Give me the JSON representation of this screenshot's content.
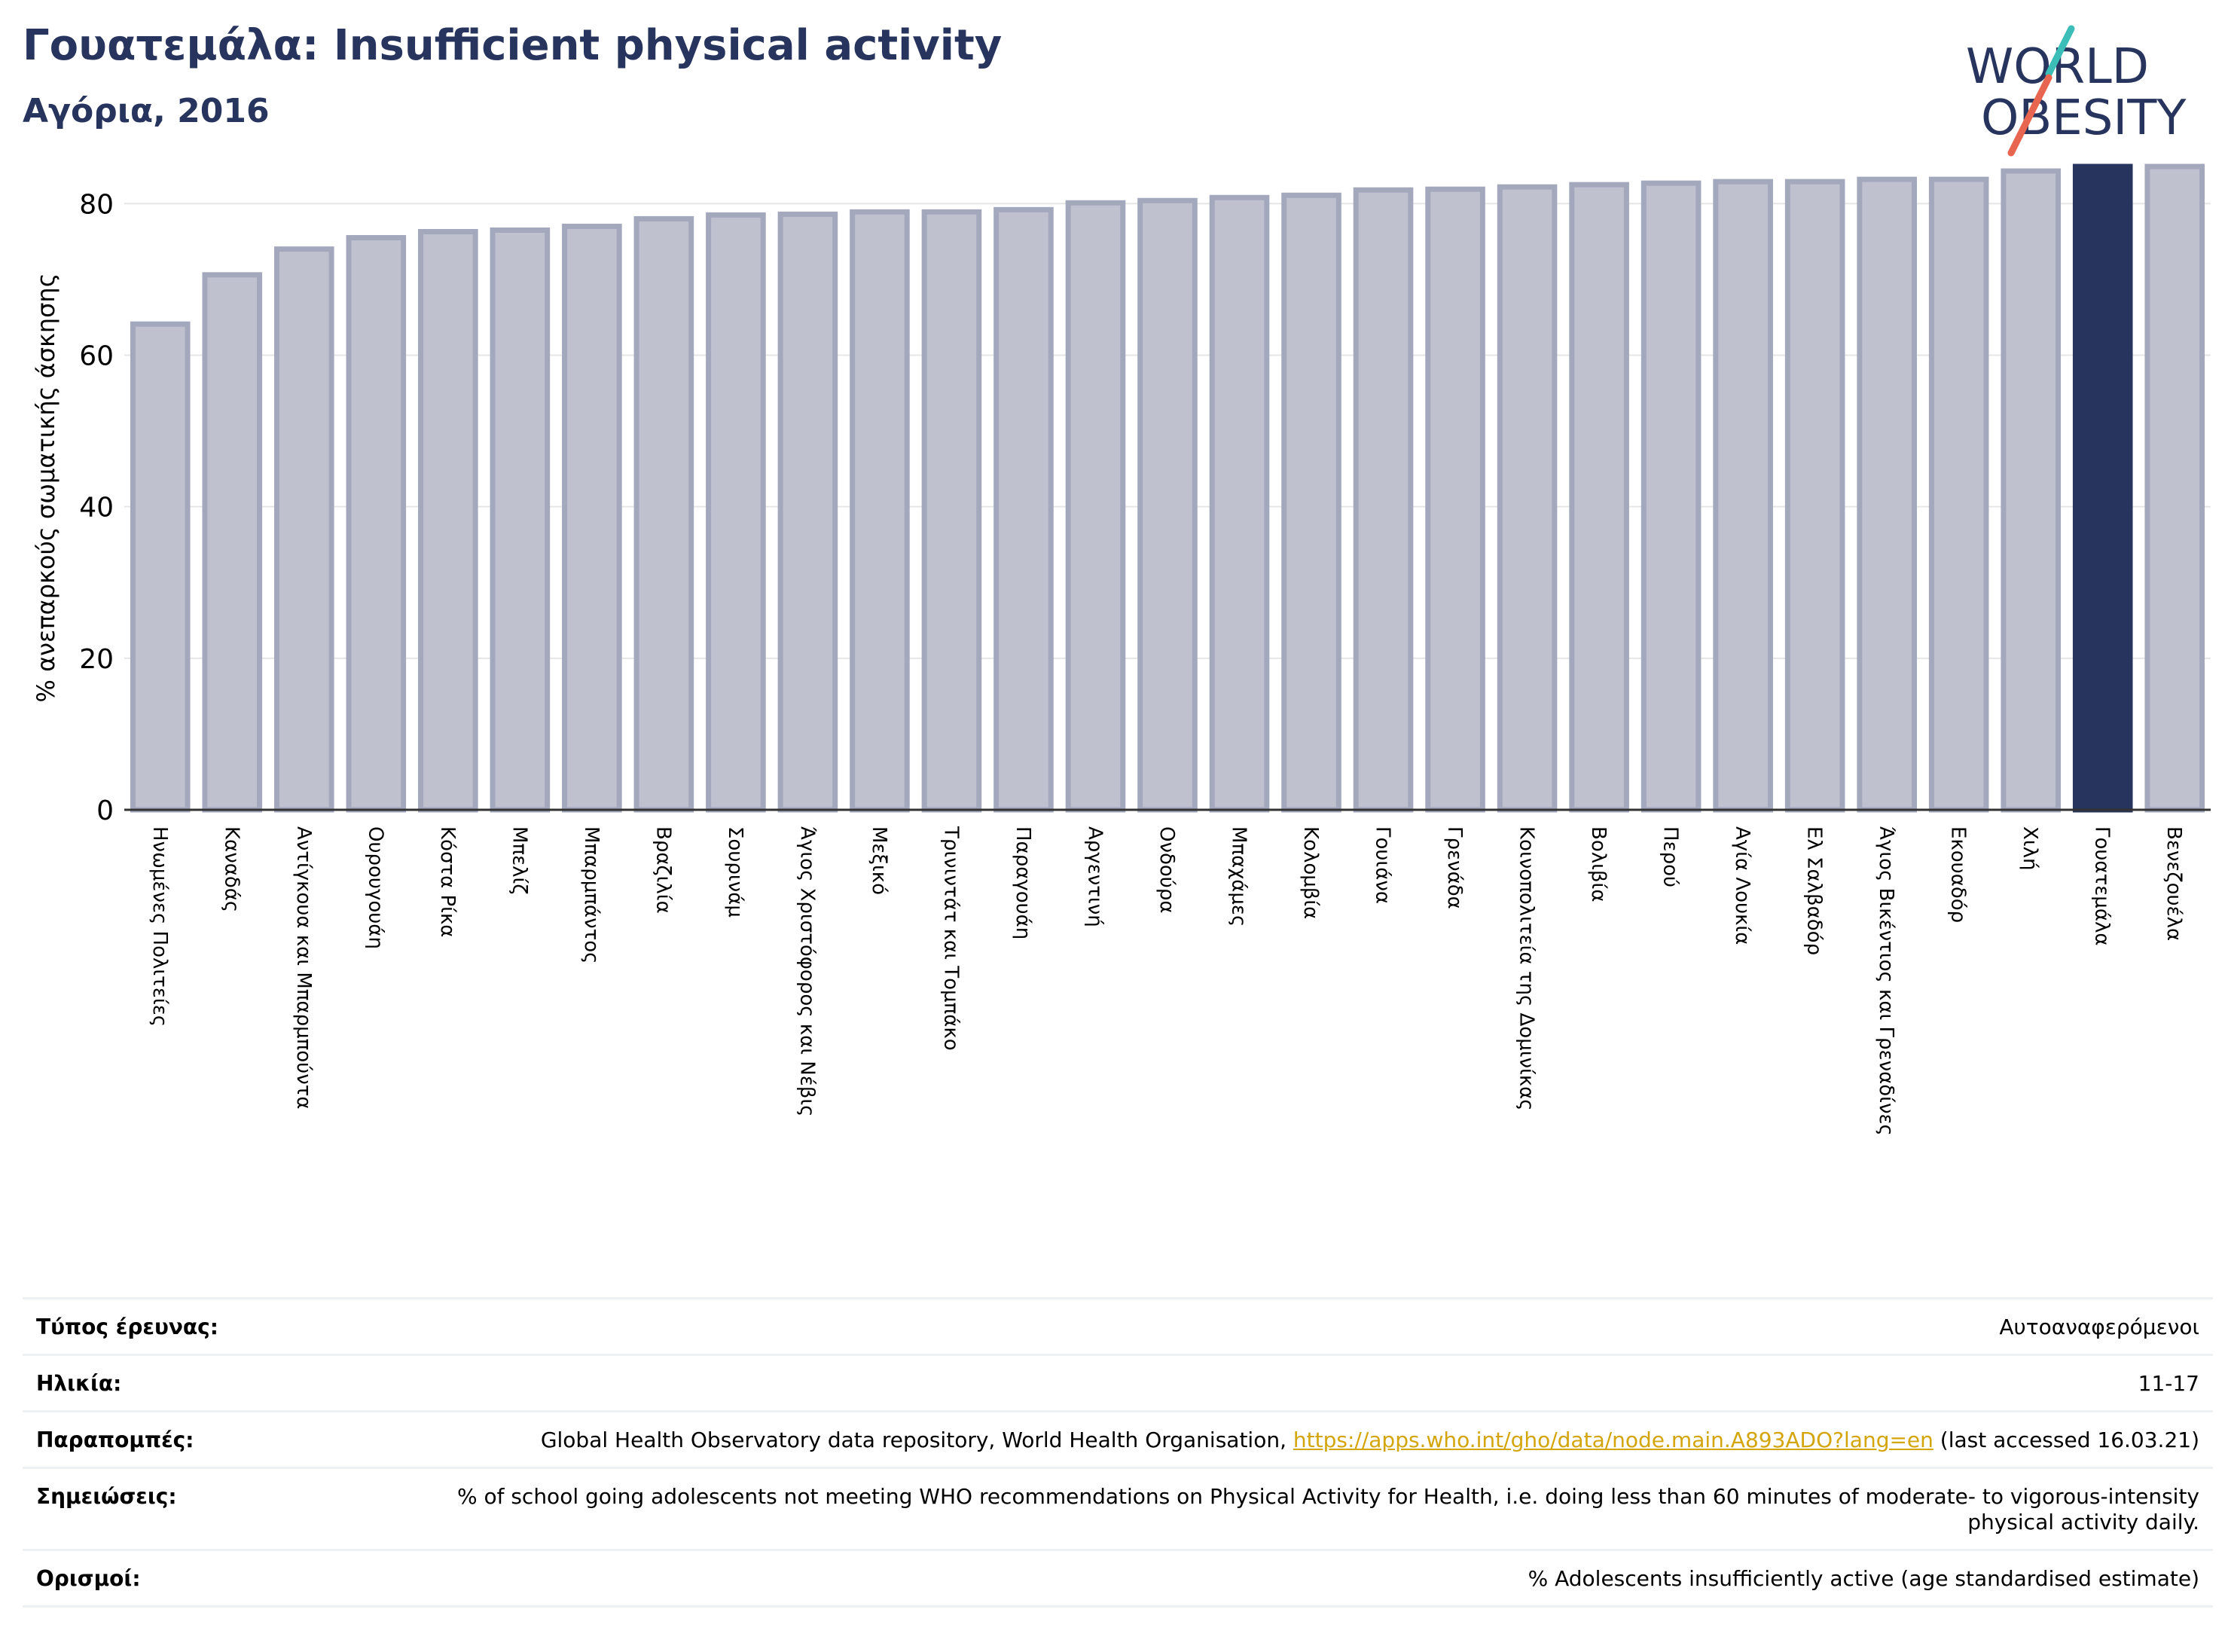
{
  "header": {
    "title": "Γουατεμάλα: Insufficient physical activity",
    "subtitle": "Αγόρια, 2016"
  },
  "logo": {
    "line1": "WORLD",
    "line2": "OBESITY",
    "accent_teal": "#3bbdb8",
    "accent_orange": "#e8664f",
    "text_color": "#27345e"
  },
  "chart_data": {
    "type": "bar",
    "title": "",
    "xlabel": "",
    "ylabel": "% ανεπαρκούς σωματικής άσκησης",
    "ylim": [
      0,
      85
    ],
    "yticks": [
      0,
      20,
      40,
      60,
      80
    ],
    "grid": true,
    "highlight_category": "Γουατεμάλα",
    "colors": {
      "bar": "#bfc1cf",
      "bar_edge": "#a3a8bd",
      "highlight": "#27345e"
    },
    "categories": [
      "Ηνωμένες Πολιτείες",
      "Καναδάς",
      "Αντίγκουα και Μπαρμπούντα",
      "Ουρουγουάη",
      "Κόστα Ρίκα",
      "Μπελίζ",
      "Μπαρμπάντος",
      "Βραζιλία",
      "Σουρινάμ",
      "Άγιος Χριστόφορος και Νέβις",
      "Μεξικό",
      "Τρινιντάτ και Τομπάκο",
      "Παραγουάη",
      "Αργεντινή",
      "Ονδούρα",
      "Μπαχάμες",
      "Κολομβία",
      "Γουιάνα",
      "Γρενάδα",
      "Κοινοπολιτεία της Δομινίκας",
      "Βολιβία",
      "Περού",
      "Αγία Λουκία",
      "Ελ Σαλβαδόρ",
      "Άγιος Βικέντιος και Γρεναδίνες",
      "Εκουαδόρ",
      "Χιλή",
      "Γουατεμάλα",
      "Βενεζουέλα"
    ],
    "values": [
      64.1,
      70.6,
      74.0,
      75.5,
      76.3,
      76.5,
      77.0,
      78.0,
      78.5,
      78.6,
      78.9,
      78.9,
      79.2,
      80.1,
      80.4,
      80.8,
      81.1,
      81.8,
      81.9,
      82.2,
      82.5,
      82.7,
      82.9,
      82.9,
      83.2,
      83.2,
      84.3,
      84.9,
      84.9
    ]
  },
  "metadata": [
    {
      "label": "Τύπος έρευνας:",
      "value": "Αυτοαναφερόμενοι"
    },
    {
      "label": "Ηλικία:",
      "value": "11-17"
    },
    {
      "label": "Παραπομπές:",
      "value_prefix": "Global Health Observatory data repository, World Health Organisation, ",
      "link": "https://apps.who.int/gho/data/node.main.A893ADO?lang=en",
      "value_suffix": " (last accessed 16.03.21)"
    },
    {
      "label": "Σημειώσεις:",
      "value": "% of school going adolescents not meeting WHO recommendations on Physical Activity for Health, i.e. doing less than 60 minutes of moderate- to vigorous-intensity physical activity daily."
    },
    {
      "label": "Ορισμοί:",
      "value": "% Adolescents insufficiently active (age standardised estimate)"
    }
  ]
}
